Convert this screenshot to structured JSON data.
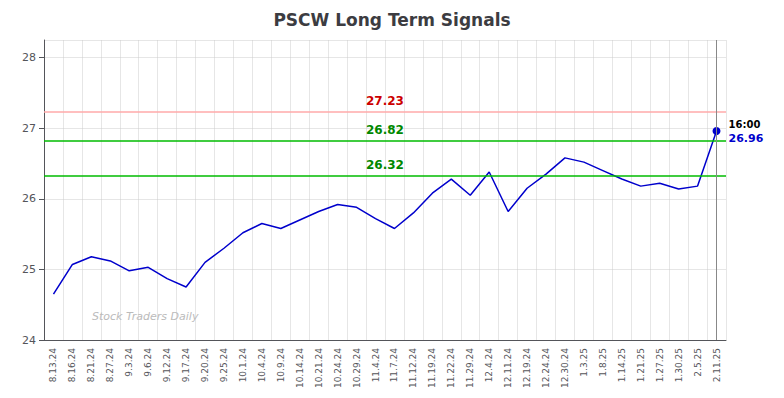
{
  "chart_data": {
    "type": "line",
    "title": "PSCW Long Term Signals",
    "categories": [
      "8.13.24",
      "8.16.24",
      "8.21.24",
      "8.27.24",
      "9.3.24",
      "9.6.24",
      "9.12.24",
      "9.17.24",
      "9.20.24",
      "9.25.24",
      "10.1.24",
      "10.4.24",
      "10.9.24",
      "10.14.24",
      "10.21.24",
      "10.24.24",
      "10.29.24",
      "11.4.24",
      "11.7.24",
      "11.12.24",
      "11.19.24",
      "11.22.24",
      "11.29.24",
      "12.4.24",
      "12.11.24",
      "12.19.24",
      "12.24.24",
      "12.30.24",
      "1.3.25",
      "1.8.25",
      "1.14.25",
      "1.21.25",
      "1.27.25",
      "1.30.25",
      "2.5.25",
      "2.11.25"
    ],
    "values": [
      24.65,
      25.07,
      25.18,
      25.12,
      24.98,
      25.03,
      24.87,
      24.75,
      25.1,
      25.3,
      25.52,
      25.65,
      25.58,
      25.7,
      25.82,
      25.92,
      25.88,
      25.72,
      25.58,
      25.8,
      26.08,
      26.28,
      26.05,
      26.38,
      25.82,
      26.15,
      26.35,
      26.58,
      26.52,
      26.4,
      26.28,
      26.18,
      26.22,
      26.14,
      26.18,
      26.96
    ],
    "color": "#0000cc",
    "ylim": [
      24.0,
      28.25
    ],
    "yticks": [
      24,
      25,
      26,
      27,
      28
    ],
    "grid": true,
    "hlines": [
      {
        "value": 27.23,
        "label": "27.23",
        "color": "#ffaaaa",
        "label_color": "#cc0000"
      },
      {
        "value": 26.82,
        "label": "26.82",
        "color": "#00bb00",
        "label_color": "#008800"
      },
      {
        "value": 26.32,
        "label": "26.32",
        "color": "#00bb00",
        "label_color": "#008800"
      }
    ],
    "annotations": [
      {
        "text": "16:00",
        "x": "2.11.25",
        "y": 26.96
      },
      {
        "text": "26.96",
        "x": "2.11.25",
        "y": 26.96,
        "color": "#0000cc"
      }
    ],
    "watermark": {
      "text": "Stock Traders Daily",
      "color": "#bbbbbb"
    }
  }
}
